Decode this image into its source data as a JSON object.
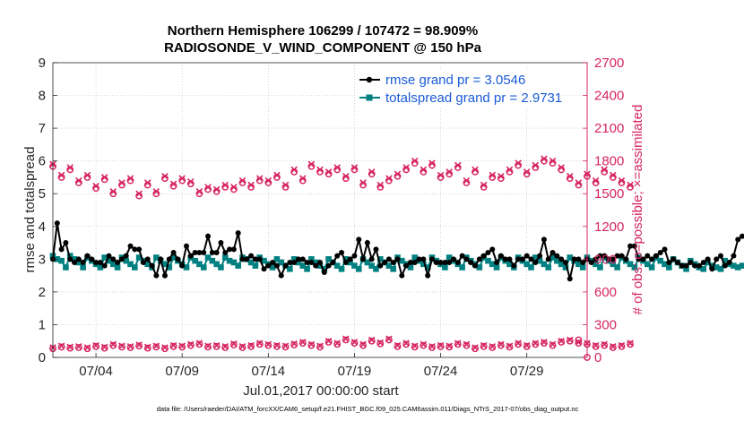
{
  "chart_data": {
    "type": "line",
    "title_line1": "Northern Hemisphere 106299 / 107472 = 98.909%",
    "title_line2": "RADIOSONDE_V_WIND_COMPONENT @ 150 hPa",
    "xlabel": "Jul.01,2017 00:00:00 start",
    "ylabel_left": "rmse and totalspread",
    "ylabel_right": "# of obs: o=possible; ×=assimilated",
    "footer": "data file: /Users/raeder/DAI/ATM_forcXX/CAM6_setup/f.e21.FHIST_BGC.f09_025.CAM6assim.011/Diags_NTrS_2017-07/obs_diag_output.nc",
    "xlim": [
      1.0,
      32.0
    ],
    "ylim_left": [
      0,
      9
    ],
    "ylim_right": [
      0,
      2700
    ],
    "x_ticks": [
      3.5,
      8.5,
      13.5,
      18.5,
      23.5,
      28.5
    ],
    "x_tick_labels": [
      "07/04",
      "07/09",
      "07/14",
      "07/19",
      "07/24",
      "07/29"
    ],
    "y_left_ticks": [
      "0",
      "1",
      "2",
      "3",
      "4",
      "5",
      "6",
      "7",
      "8",
      "9"
    ],
    "y_right_ticks": [
      "0",
      "300",
      "600",
      "900",
      "1200",
      "1500",
      "1800",
      "2100",
      "2400",
      "2700"
    ],
    "grid": true,
    "legend_position": "top-right",
    "colors": {
      "rmse": "#000000",
      "spread": "#008080",
      "obs": "#d62462",
      "legend_text": "#1a5bd8",
      "right_axis": "#d62462"
    },
    "series": [
      {
        "name": "rmse grand pr = 3.0546",
        "axis": "left",
        "start_x": 1.0,
        "step": 0.25,
        "values": [
          3.0,
          4.1,
          3.3,
          3.5,
          3.0,
          2.9,
          3.0,
          2.9,
          3.1,
          3.0,
          2.9,
          2.9,
          2.8,
          3.1,
          3.0,
          2.9,
          3.0,
          3.1,
          3.4,
          3.3,
          3.3,
          2.9,
          3.0,
          2.8,
          2.5,
          3.0,
          2.5,
          3.0,
          3.2,
          3.0,
          2.8,
          3.4,
          3.1,
          3.2,
          3.2,
          3.2,
          3.7,
          3.2,
          3.2,
          3.5,
          3.2,
          3.3,
          3.3,
          3.8,
          3.0,
          3.0,
          3.1,
          3.0,
          3.0,
          2.7,
          2.8,
          2.9,
          2.8,
          2.5,
          2.8,
          2.9,
          2.9,
          3.0,
          3.0,
          2.9,
          2.9,
          2.8,
          2.9,
          2.6,
          2.8,
          2.9,
          3.1,
          3.2,
          2.9,
          3.0,
          3.1,
          3.6,
          3.0,
          3.5,
          3.0,
          3.3,
          2.8,
          2.9,
          3.0,
          2.9,
          3.0,
          2.5,
          2.8,
          2.9,
          2.9,
          3.0,
          3.0,
          2.5,
          3.0,
          2.9,
          2.9,
          2.9,
          2.9,
          3.0,
          2.9,
          3.1,
          3.0,
          2.9,
          2.8,
          3.0,
          3.1,
          3.2,
          3.3,
          2.9,
          3.1,
          3.0,
          3.0,
          2.8,
          3.0,
          3.0,
          3.1,
          3.0,
          2.9,
          3.1,
          3.6,
          3.0,
          3.2,
          3.1,
          3.0,
          2.9,
          2.4,
          3.0,
          3.0,
          2.9,
          3.0,
          2.9,
          3.0,
          3.1,
          3.1,
          3.0,
          3.0,
          3.1,
          3.1,
          3.0,
          3.4,
          3.4,
          3.0,
          3.0,
          3.1,
          3.0,
          3.1,
          3.2,
          3.3,
          2.9,
          3.0,
          2.9,
          2.8,
          2.8,
          2.9,
          2.8,
          2.8,
          2.9,
          3.0,
          2.7,
          3.0,
          3.1,
          2.8,
          2.9,
          3.1,
          3.6,
          3.7
        ]
      },
      {
        "name": "totalspread grand pr = 2.9731",
        "axis": "left",
        "start_x": 1.0,
        "step": 0.25,
        "values": [
          3.1,
          3.0,
          2.95,
          2.75,
          3.1,
          3.0,
          2.9,
          2.75,
          3.05,
          2.95,
          2.85,
          2.75,
          3.05,
          2.95,
          2.85,
          2.75,
          3.05,
          2.95,
          2.85,
          2.75,
          3.05,
          2.95,
          2.85,
          2.75,
          3.05,
          2.95,
          2.85,
          2.75,
          3.05,
          2.95,
          2.85,
          2.75,
          3.05,
          2.95,
          2.85,
          2.75,
          3.05,
          2.95,
          2.85,
          2.75,
          3.05,
          2.95,
          2.9,
          2.8,
          3.05,
          3.0,
          2.9,
          2.8,
          3.05,
          2.95,
          2.85,
          2.75,
          3.0,
          2.9,
          2.8,
          2.7,
          3.0,
          2.9,
          2.8,
          2.7,
          3.0,
          2.9,
          2.8,
          2.7,
          3.0,
          2.9,
          2.8,
          2.7,
          3.0,
          2.9,
          2.8,
          2.7,
          3.0,
          2.9,
          2.8,
          2.7,
          3.0,
          2.9,
          2.8,
          2.7,
          3.05,
          2.95,
          2.85,
          2.75,
          3.05,
          2.95,
          2.85,
          2.75,
          3.05,
          2.95,
          2.85,
          2.75,
          3.05,
          2.95,
          2.85,
          2.75,
          3.05,
          2.95,
          2.85,
          2.75,
          3.05,
          2.95,
          2.85,
          2.75,
          3.05,
          2.95,
          2.85,
          2.75,
          3.05,
          2.95,
          2.85,
          2.75,
          3.05,
          2.95,
          2.85,
          2.75,
          3.05,
          2.95,
          2.85,
          2.75,
          3.05,
          2.95,
          2.85,
          2.75,
          3.05,
          2.95,
          2.85,
          2.75,
          3.05,
          2.95,
          2.85,
          2.75,
          3.05,
          2.95,
          2.85,
          2.75,
          3.05,
          2.95,
          2.85,
          2.75,
          3.05,
          2.95,
          2.85,
          2.75,
          3.0,
          2.9,
          2.8,
          2.7,
          2.95,
          2.85,
          2.75,
          2.7,
          2.9,
          2.8,
          2.75,
          2.7,
          2.95,
          2.85,
          2.8,
          2.75,
          2.8
        ]
      },
      {
        "name": "obs possible (upper)",
        "axis": "right",
        "marker": "circle",
        "start_x": 1.0,
        "step": 0.5,
        "values": [
          1750,
          1650,
          1720,
          1600,
          1650,
          1550,
          1630,
          1500,
          1580,
          1620,
          1480,
          1580,
          1500,
          1640,
          1570,
          1620,
          1590,
          1500,
          1540,
          1520,
          1560,
          1540,
          1600,
          1560,
          1620,
          1600,
          1650,
          1560,
          1700,
          1620,
          1750,
          1700,
          1680,
          1720,
          1640,
          1720,
          1580,
          1680,
          1560,
          1620,
          1660,
          1720,
          1780,
          1700,
          1760,
          1650,
          1680,
          1740,
          1600,
          1700,
          1560,
          1650,
          1640,
          1700,
          1760,
          1680,
          1740,
          1800,
          1780,
          1720,
          1640,
          1580,
          1660,
          1600,
          1700,
          1650,
          1600,
          1560
        ]
      },
      {
        "name": "obs assimilated (upper)",
        "axis": "right",
        "marker": "x",
        "start_x": 1.0,
        "step": 0.5,
        "values": [
          1770,
          1670,
          1740,
          1620,
          1670,
          1570,
          1650,
          1520,
          1600,
          1640,
          1500,
          1600,
          1520,
          1660,
          1590,
          1640,
          1610,
          1520,
          1560,
          1540,
          1580,
          1560,
          1620,
          1580,
          1640,
          1620,
          1670,
          1580,
          1720,
          1640,
          1770,
          1720,
          1700,
          1740,
          1660,
          1740,
          1600,
          1700,
          1580,
          1640,
          1680,
          1740,
          1800,
          1720,
          1780,
          1670,
          1700,
          1760,
          1620,
          1720,
          1580,
          1670,
          1660,
          1720,
          1780,
          1700,
          1760,
          1820,
          1800,
          1740,
          1660,
          1600,
          1680,
          1620,
          1720,
          1670,
          1620,
          1580
        ]
      },
      {
        "name": "obs possible (lower)",
        "axis": "right",
        "marker": "circle",
        "start_x": 1.0,
        "step": 0.5,
        "values": [
          80,
          95,
          85,
          90,
          80,
          100,
          85,
          110,
          95,
          90,
          105,
          85,
          95,
          80,
          100,
          95,
          110,
          120,
          95,
          100,
          90,
          115,
          90,
          100,
          120,
          110,
          100,
          95,
          115,
          130,
          110,
          95,
          140,
          120,
          160,
          130,
          110,
          150,
          125,
          160,
          100,
          120,
          95,
          110,
          90,
          100,
          95,
          120,
          110,
          80,
          100,
          90,
          110,
          95,
          120,
          100,
          120,
          130,
          110,
          140,
          150,
          130,
          120,
          100,
          110,
          90,
          100,
          120
        ]
      },
      {
        "name": "obs assimilated (lower)",
        "axis": "right",
        "marker": "x",
        "start_x": 1.0,
        "step": 0.5,
        "values": [
          90,
          105,
          95,
          100,
          90,
          110,
          95,
          120,
          105,
          100,
          115,
          95,
          105,
          90,
          110,
          105,
          120,
          130,
          105,
          110,
          100,
          125,
          100,
          110,
          130,
          120,
          110,
          105,
          125,
          140,
          120,
          105,
          150,
          130,
          170,
          140,
          120,
          160,
          135,
          170,
          110,
          130,
          105,
          120,
          100,
          110,
          105,
          130,
          120,
          90,
          110,
          100,
          120,
          105,
          130,
          110,
          130,
          140,
          120,
          150,
          160,
          140,
          130,
          110,
          120,
          100,
          110,
          130
        ]
      },
      {
        "name": "obs final point",
        "axis": "right",
        "marker": "circle",
        "x": [
          31.5,
          32.0
        ],
        "values": [
          160,
          0
        ]
      }
    ]
  }
}
